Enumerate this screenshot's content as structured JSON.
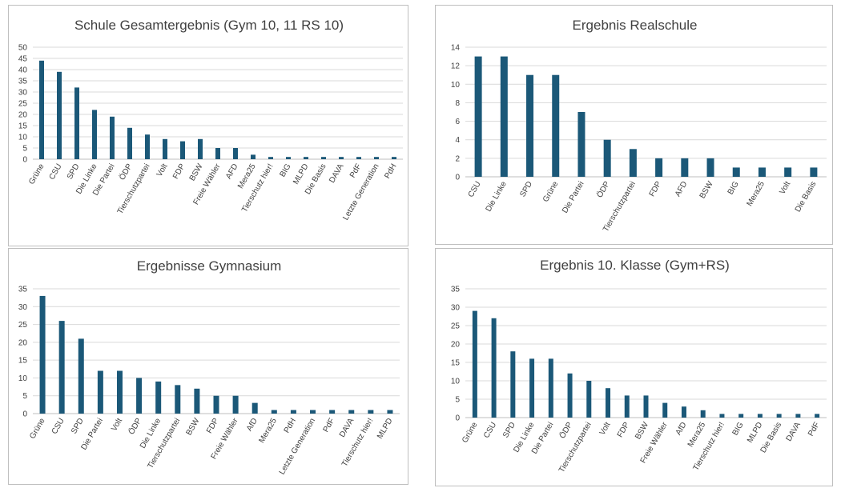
{
  "colors": {
    "bar": "#1b5878"
  },
  "chart_data": [
    {
      "type": "bar",
      "title": "Schule Gesamtergebnis (Gym 10, 11 RS 10)",
      "categories": [
        "Grüne",
        "CSU",
        "SPD",
        "Die Linke",
        "Die Partei",
        "ÖDP",
        "Tierschutzpartei",
        "Volt",
        "FDP",
        "BSW",
        "Freie Wähler",
        "AFD",
        "Mera25",
        "Tierschutz hier!",
        "BIG",
        "MLPD",
        "Die Basis",
        "DAVA",
        "PdF",
        "Letzte Generation",
        "PdH"
      ],
      "values": [
        44,
        39,
        32,
        22,
        19,
        14,
        11,
        9,
        8,
        9,
        5,
        5,
        2,
        1,
        1,
        1,
        1,
        1,
        1,
        1,
        1
      ],
      "yticks": [
        0,
        5,
        10,
        15,
        20,
        25,
        30,
        35,
        40,
        45,
        50
      ],
      "ylim": [
        0,
        50
      ],
      "grid": true,
      "xlabel": "",
      "ylabel": ""
    },
    {
      "type": "bar",
      "title": "Ergebnis Realschule",
      "categories": [
        "CSU",
        "Die Linke",
        "SPD",
        "Grüne",
        "Die Partei",
        "ÖDP",
        "Tierschutzpartei",
        "FDP",
        "AFD",
        "BSW",
        "BIG",
        "Mera25",
        "Volt",
        "Die Basis"
      ],
      "values": [
        13,
        13,
        11,
        11,
        7,
        4,
        3,
        2,
        2,
        2,
        1,
        1,
        1,
        1
      ],
      "yticks": [
        0,
        2,
        4,
        6,
        8,
        10,
        12,
        14
      ],
      "ylim": [
        0,
        14
      ],
      "grid": true,
      "xlabel": "",
      "ylabel": ""
    },
    {
      "type": "bar",
      "title": "Ergebnisse Gymnasium",
      "categories": [
        "Grüne",
        "CSU",
        "SPD",
        "Die Partei",
        "Volt",
        "ÖDP",
        "Die Linke",
        "Tierschutzpartei",
        "BSW",
        "FDP",
        "Freie Wähler",
        "AfD",
        "Mera25",
        "PdH",
        "Letzte Generation",
        "PdF",
        "DAVA",
        "Tierschutz hier!",
        "MLPD"
      ],
      "values": [
        33,
        26,
        21,
        12,
        12,
        10,
        9,
        8,
        7,
        5,
        5,
        3,
        1,
        1,
        1,
        1,
        1,
        1,
        1
      ],
      "yticks": [
        0,
        5,
        10,
        15,
        20,
        25,
        30,
        35
      ],
      "ylim": [
        0,
        35
      ],
      "grid": true,
      "xlabel": "",
      "ylabel": ""
    },
    {
      "type": "bar",
      "title": "Ergebnis 10. Klasse (Gym+RS)",
      "categories": [
        "Grüne",
        "CSU",
        "SPD",
        "Die Linke",
        "Die Partei",
        "ÖDP",
        "Tierschutzpartei",
        "Volt",
        "FDP",
        "BSW",
        "Freie Wähler",
        "AfD",
        "Mera25",
        "Tierschutz hier!",
        "BIG",
        "MLPD",
        "Die Basis",
        "DAVA",
        "PdF"
      ],
      "values": [
        29,
        27,
        18,
        16,
        16,
        12,
        10,
        8,
        6,
        6,
        4,
        3,
        2,
        1,
        1,
        1,
        1,
        1,
        1
      ],
      "yticks": [
        0,
        5,
        10,
        15,
        20,
        25,
        30,
        35
      ],
      "ylim": [
        0,
        35
      ],
      "grid": true,
      "xlabel": "",
      "ylabel": ""
    }
  ]
}
